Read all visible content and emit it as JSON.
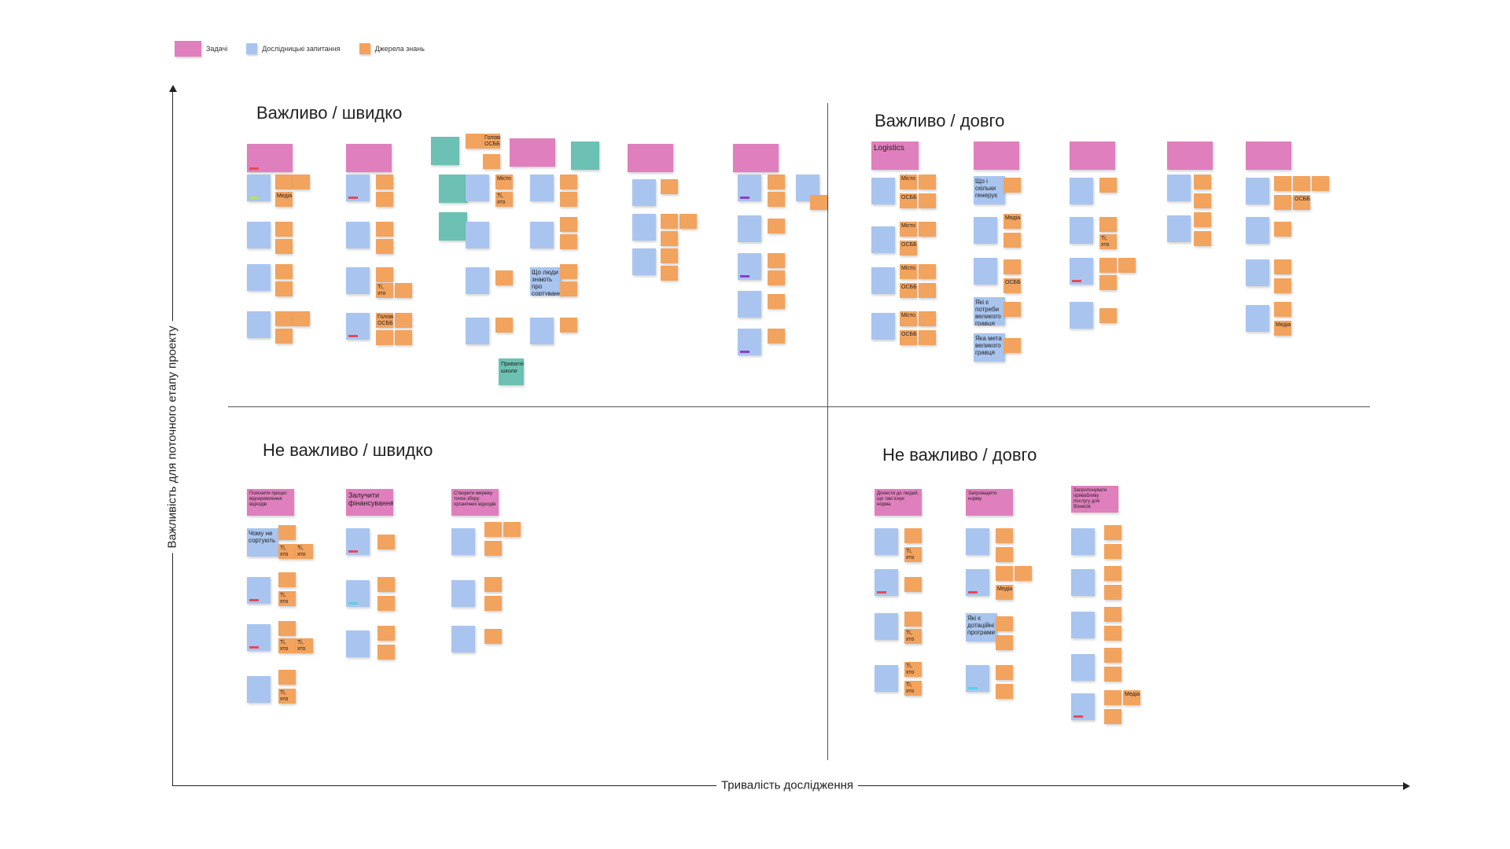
{
  "legend": [
    {
      "label": "Задачі",
      "color": "#e07fbd",
      "swatch": "wide"
    },
    {
      "label": "Дослідницькі запитання",
      "color": "#a9c5ef",
      "swatch": "small"
    },
    {
      "label": "Джерела знань",
      "color": "#f2a35e",
      "swatch": "small"
    }
  ],
  "axes": {
    "y": "Важливість для поточного етапу проекту",
    "x": "Тривалість дослідження"
  },
  "quadrants": {
    "important_fast": "Важливо / швидко",
    "important_long": "Важливо / довго",
    "not_important_fast": "Не важливо / швидко",
    "not_important_long": "Не важливо / довго"
  },
  "notes": {
    "iq_teal_1": "Приватні школи",
    "iq_q_1": "Медіа",
    "iq_s_1": "Голови ОСББ",
    "iq_q_2": "Що люди знають про сортування",
    "iq_s_2": "Ті, хто сортує",
    "iq_s_3": "Голови ОСББ",
    "iq_s_4": "Місто",
    "iq_s_5": "Ті, хто сортує",
    "il_task_1": "Logistics",
    "il_s_1": "Місто",
    "il_s_2": "ОСББ",
    "il_s_3": "Місто",
    "il_s_4": "ОСББ",
    "il_s_5": "Місто",
    "il_s_6": "ОСББ",
    "il_s_7": "Місто",
    "il_s_8": "ОСББ",
    "il_q_1": "Що і скільки генерує",
    "il_s_9": "Медіа",
    "il_q_2": "Які є потреби великого гравця",
    "il_q_3": "Яка мета великого гравця",
    "il_s_10": "ОСББ",
    "il_s_11": "ОСББ",
    "il_s_12": "Медіа",
    "il_s_13": "Ті, хто сортує",
    "nf_task_1": "Пояснити процес відокремлення відходів",
    "nf_task_2": "Залучити фінансування",
    "nf_task_3": "Створити мережу точок збору органічних відходів",
    "nf_q_1": "Чому не сортують",
    "nf_s_1": "Ті, хто сортує",
    "nf_s_2": "Ті, хто не сортує",
    "nf_s_3": "Ті, хто сортує",
    "nf_s_4": "Ті, хто сортує",
    "nf_s_5": "Ті, хто не сортує",
    "nf_s_6": "Ті, хто сортує",
    "nl_task_1": "Донести до людей, що такі існує норма",
    "nl_task_2": "Запровадити норму",
    "nl_task_3": "Запропонувати привабливу послугу для бізнесів",
    "nl_q_1": "Які є дотаційні програми",
    "nl_s_1": "Медіа",
    "nl_s_2": "Ті, хто сортує",
    "nl_s_3": "Ті, хто сортує",
    "nl_s_4": "Ті, хто сортує",
    "nl_s_5": "Ті, хто сортує",
    "nl_s_6": "Медіа"
  }
}
